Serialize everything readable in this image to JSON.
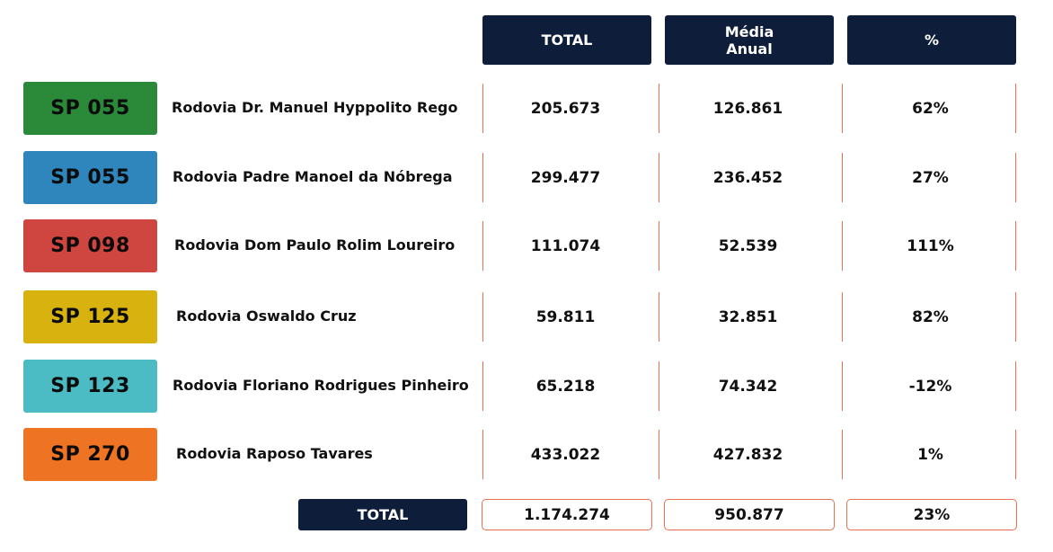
{
  "header": {
    "total_label": "TOTAL",
    "media_line1": "Média",
    "media_line2": "Anual",
    "pct_label": "%"
  },
  "rows": [
    {
      "code": "SP 055",
      "name": "Rodovia Dr. Manuel Hyppolito Rego",
      "total": "205.673",
      "media": "126.861",
      "pct": "62%",
      "color": "#2a8a3a"
    },
    {
      "code": "SP 055",
      "name": "Rodovia Padre Manoel da Nóbrega",
      "total": "299.477",
      "media": "236.452",
      "pct": "27%",
      "color": "#2f86bd"
    },
    {
      "code": "SP 098",
      "name": "Rodovia Dom Paulo Rolim Loureiro",
      "total": "111.074",
      "media": "52.539",
      "pct": "111%",
      "color": "#cf4540"
    },
    {
      "code": "SP 125",
      "name": "Rodovia Oswaldo Cruz",
      "total": "59.811",
      "media": "32.851",
      "pct": "82%",
      "color": "#d8b20f"
    },
    {
      "code": "SP 123",
      "name": "Rodovia Floriano Rodrigues Pinheiro",
      "total": "65.218",
      "media": "74.342",
      "pct": "-12%",
      "color": "#4bbcc3"
    },
    {
      "code": "SP 270",
      "name": "Rodovia Raposo Tavares",
      "total": "433.022",
      "media": "427.832",
      "pct": "1%",
      "color": "#ee7322"
    }
  ],
  "footer": {
    "label": "TOTAL",
    "total": "1.174.274",
    "media": "950.877",
    "pct": "23%"
  },
  "colors": {
    "header_bg": "#0e1e3a",
    "divider": "#e8704e"
  }
}
